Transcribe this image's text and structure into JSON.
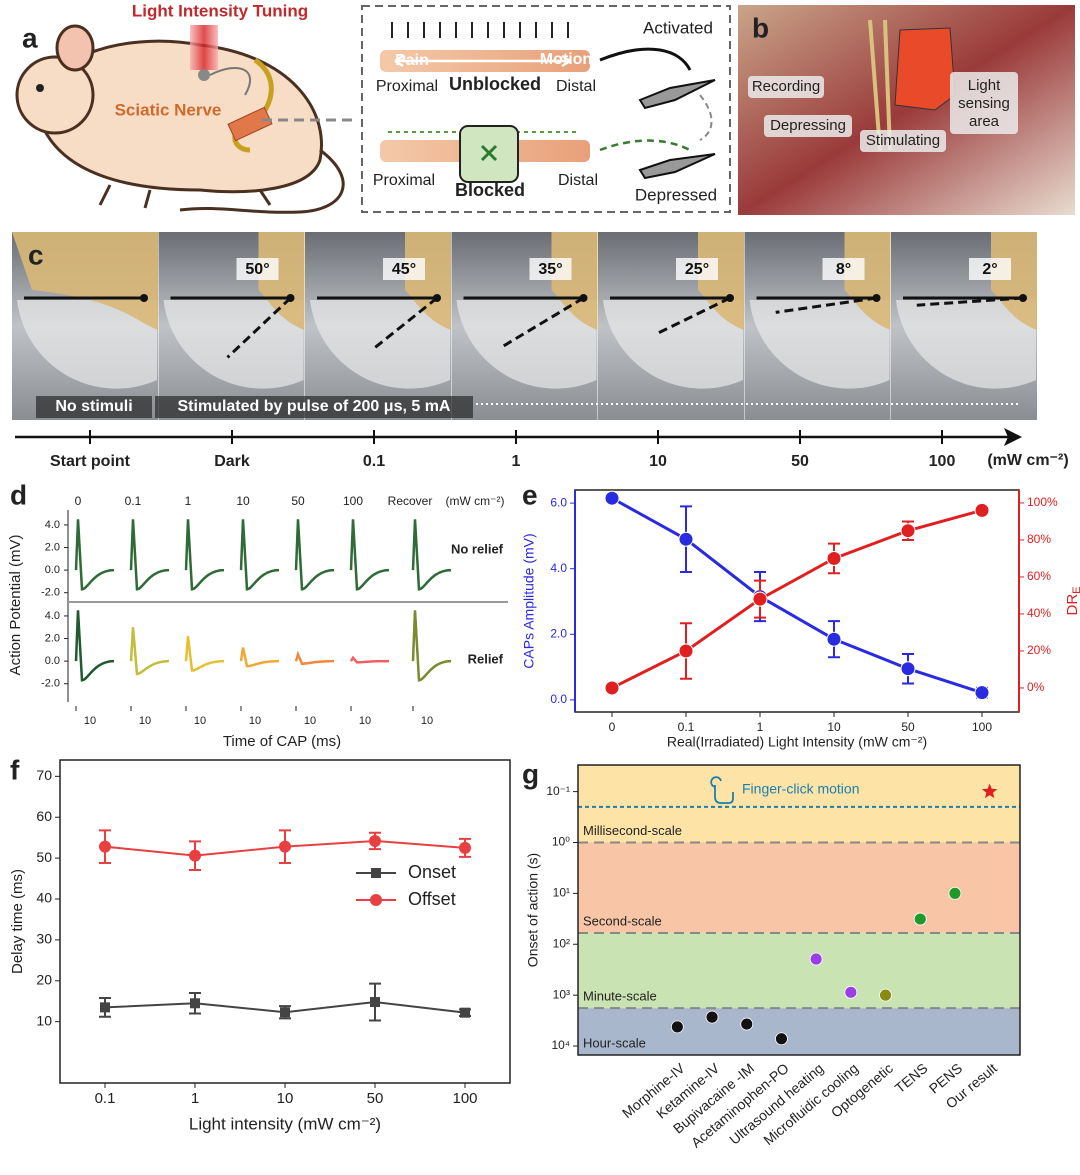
{
  "panel_a": {
    "label": "a",
    "title": "Light Intensity Tuning",
    "nerve": "Sciatic Nerve",
    "unblocked": {
      "pain": "Pain",
      "motion": "Motion",
      "proximal": "Proximal",
      "state": "Unblocked",
      "distal": "Distal",
      "result": "Activated"
    },
    "blocked": {
      "proximal": "Proximal",
      "state": "Blocked",
      "distal": "Distal",
      "result": "Depressed"
    }
  },
  "panel_b": {
    "label": "b",
    "recording": "Recording",
    "depressing": "Depressing",
    "stimulating": "Stimulating",
    "area": [
      "Light",
      "sensing",
      "area"
    ]
  },
  "panel_c": {
    "label": "c",
    "angles": [
      "50°",
      "45°",
      "35°",
      "25°",
      "8°",
      "2°"
    ],
    "no_stimuli": "No stimuli",
    "stimulated": "Stimulated by pulse of 200 μs, 5 mA",
    "timeline": [
      "Start point",
      "Dark",
      "0.1",
      "1",
      "10",
      "50",
      "100"
    ],
    "unit": "(mW cm⁻²)"
  },
  "chart_data": [
    {
      "type": "waveform",
      "label": "d",
      "ylabel": "Action Potential (mV)",
      "xlabel": "Time of CAP (ms)",
      "conditions": [
        "0",
        "0.1",
        "1",
        "10",
        "50",
        "100",
        "Recover"
      ],
      "unit": "(mW cm⁻²)",
      "ylim": [
        -3,
        5.5
      ],
      "yticks": [
        {
          "value": 4,
          "label": "4.0"
        },
        {
          "value": 2,
          "label": "2.0"
        },
        {
          "value": 0,
          "label": "0.0"
        },
        {
          "value": -2,
          "label": "-2.0"
        }
      ],
      "scale_labels": [
        10,
        10,
        10,
        10,
        10,
        10,
        10
      ],
      "series": [
        {
          "name": "No relief",
          "values": [
            4.5,
            4.5,
            4.5,
            4.5,
            4.5,
            4.5,
            4.5
          ],
          "colors": [
            "#2e6b36",
            "#2e6b36",
            "#2e6b36",
            "#2e6b36",
            "#2e6b36",
            "#2e6b36",
            "#2e6b36"
          ]
        },
        {
          "name": "Relief",
          "values": [
            4.5,
            3.0,
            2.2,
            1.2,
            0.6,
            0.3,
            4.5
          ],
          "colors": [
            "#1f5a30",
            "#c4bd3a",
            "#e6c030",
            "#f0a830",
            "#f08840",
            "#f06060",
            "#7a8a30"
          ]
        }
      ]
    },
    {
      "type": "line",
      "label": "e",
      "xlabel": "Real(Irradiated) Light Intensity (mW cm⁻²)",
      "ylabel": "CAPs Amplitude (mV)",
      "y2label": "DR",
      "y2label_sub": "E",
      "categories": [
        "0",
        "0.1",
        "1",
        "10",
        "50",
        "100"
      ],
      "ylim": [
        -0.37,
        6.4
      ],
      "yticks": [
        {
          "value": 0,
          "label": "0.0"
        },
        {
          "value": 2,
          "label": "2.0"
        },
        {
          "value": 4,
          "label": "4.0"
        },
        {
          "value": 6,
          "label": "6.0"
        }
      ],
      "y2lim": [
        -13,
        107
      ],
      "y2ticks": [
        {
          "value": 0,
          "label": "0%"
        },
        {
          "value": 20,
          "label": "20%"
        },
        {
          "value": 40,
          "label": "40%"
        },
        {
          "value": 60,
          "label": "60%"
        },
        {
          "value": 80,
          "label": "80%"
        },
        {
          "value": 100,
          "label": "100%"
        }
      ],
      "series": [
        {
          "name": "CAPs Amplitude (mV)",
          "color": "#2a2ae0",
          "values": [
            6.15,
            4.9,
            3.15,
            1.85,
            0.95,
            0.22
          ],
          "errors": [
            0,
            1.0,
            0.75,
            0.55,
            0.45,
            0.15
          ]
        },
        {
          "name": "DRE",
          "color": "#e02020",
          "axis": "y2",
          "values": [
            0,
            20,
            48,
            70,
            85,
            96
          ],
          "errors": [
            0,
            15,
            10,
            8,
            5,
            2
          ]
        }
      ]
    },
    {
      "type": "line",
      "label": "f",
      "xlabel": "Light intensity (mW cm⁻²)",
      "ylabel": "Delay time (ms)",
      "categories": [
        "0.1",
        "1",
        "10",
        "50",
        "100"
      ],
      "ylim": [
        -5,
        74
      ],
      "yticks": [
        10,
        20,
        30,
        40,
        50,
        60,
        70
      ],
      "legend": "center-right",
      "series": [
        {
          "name": "Onset",
          "color": "#444444",
          "marker": "square",
          "values": [
            13.5,
            14.5,
            12.3,
            14.8,
            12.2
          ],
          "errors": [
            2.3,
            2.5,
            1.5,
            4.5,
            0.8
          ]
        },
        {
          "name": "Offset",
          "color": "#e84040",
          "marker": "circle",
          "values": [
            52.8,
            50.6,
            52.8,
            54.2,
            52.5
          ],
          "errors": [
            4,
            3.5,
            4,
            2,
            2.2
          ]
        }
      ]
    },
    {
      "type": "scatter",
      "label": "g",
      "ylabel": "Onset of action (s)",
      "yscale": "log",
      "y_inverted": true,
      "ylim": [
        0.03,
        15000
      ],
      "yticks": [
        {
          "value": 0.1,
          "label": "10⁻¹"
        },
        {
          "value": 1,
          "label": "10⁰"
        },
        {
          "value": 10,
          "label": "10¹"
        },
        {
          "value": 100,
          "label": "10²"
        },
        {
          "value": 1000,
          "label": "10³"
        },
        {
          "value": 10000,
          "label": "10⁴"
        }
      ],
      "categories": [
        "Morphine-IV",
        "Ketamine-IV",
        "Bupivacaine -IM",
        "Acetaminophen-PO",
        "Ultrasound heating",
        "Microfluidic cooling",
        "Optogenetic",
        "TENS",
        "PENS",
        "Our result"
      ],
      "values": [
        4200,
        2700,
        3700,
        7200,
        195,
        880,
        1000,
        32,
        10,
        0.1
      ],
      "colors": [
        "#111111",
        "#111111",
        "#111111",
        "#111111",
        "#9a3ee8",
        "#9a3ee8",
        "#8a8a10",
        "#1f9a2a",
        "#1f9a2a",
        "#e02020"
      ],
      "bands": {
        "names": [
          "Millisecond-scale",
          "Second-scale",
          "Minute-scale",
          "Hour-scale"
        ],
        "edges": [
          1,
          60,
          1800
        ],
        "colors": [
          "#fde4a6",
          "#f8c6a6",
          "#c9e3b3",
          "#a9b7cd"
        ]
      },
      "reference": {
        "label": "Finger-click motion",
        "value": 0.2,
        "color": "#1a7fb0"
      }
    }
  ]
}
